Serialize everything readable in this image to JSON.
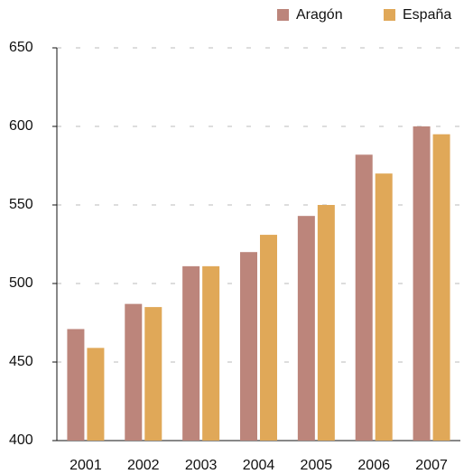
{
  "chart_data": {
    "type": "bar",
    "categories": [
      "2001",
      "2002",
      "2003",
      "2004",
      "2005",
      "2006",
      "2007"
    ],
    "series": [
      {
        "name": "Aragón",
        "color": "#bc857b",
        "values": [
          471,
          487,
          511,
          520,
          543,
          582,
          600
        ]
      },
      {
        "name": "España",
        "color": "#e0a858",
        "values": [
          459,
          485,
          511,
          531,
          550,
          570,
          595
        ]
      }
    ],
    "ylim": [
      400,
      650
    ],
    "yticks": [
      400,
      450,
      500,
      550,
      600,
      650
    ],
    "grid": true,
    "legend": "top-right"
  }
}
